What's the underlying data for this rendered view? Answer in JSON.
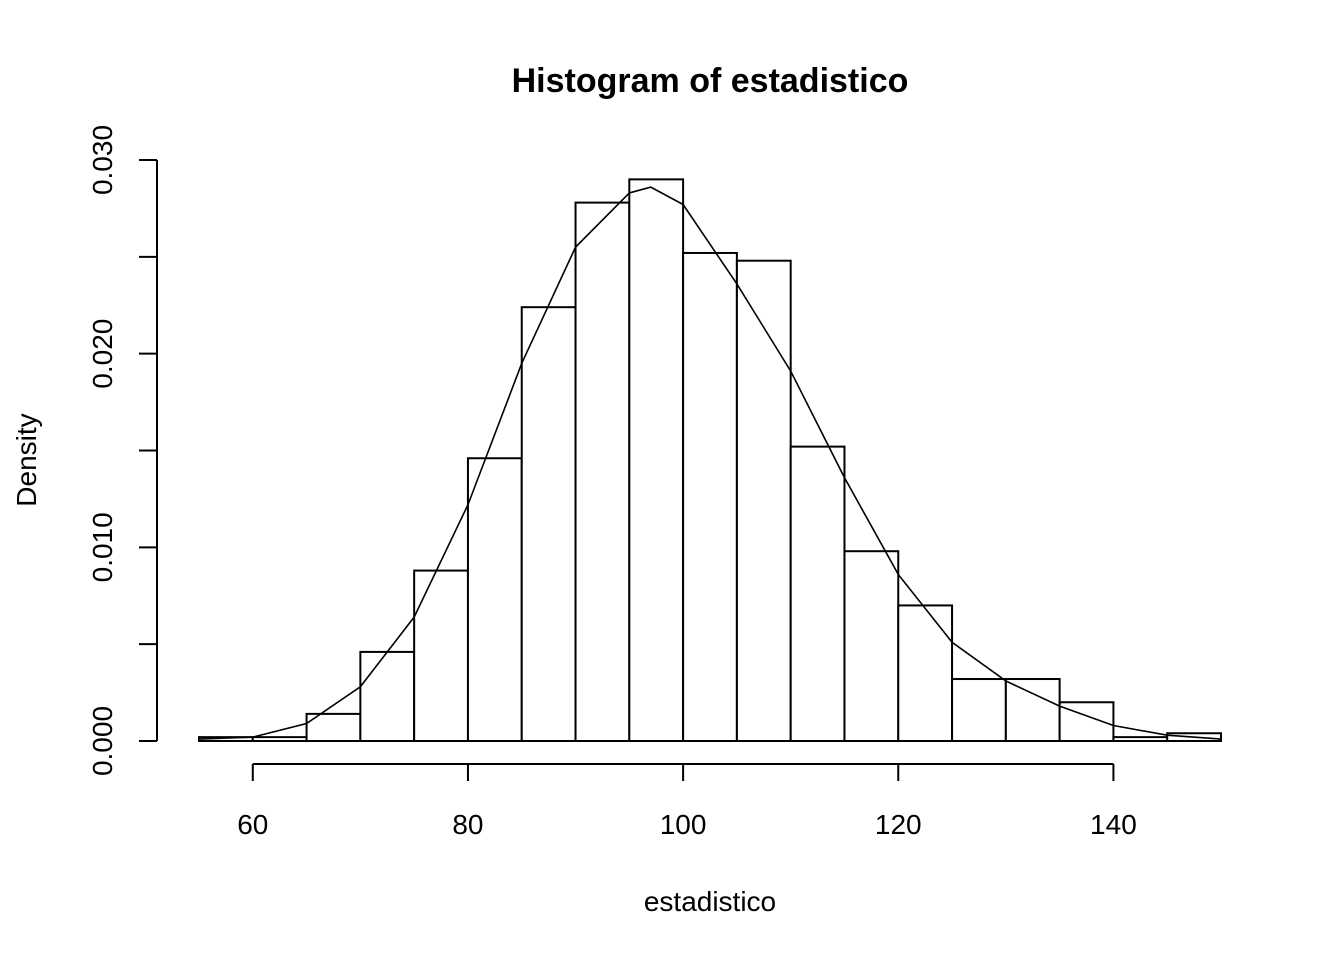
{
  "chart_data": {
    "type": "bar",
    "title": "Histogram of estadistico",
    "xlabel": "estadistico",
    "ylabel": "Density",
    "xlim": [
      55,
      150
    ],
    "ylim": [
      0,
      0.03
    ],
    "x_ticks": [
      60,
      80,
      100,
      120,
      140
    ],
    "x_tick_labels": [
      "60",
      "80",
      "100",
      "120",
      "140"
    ],
    "y_ticks": [
      0,
      0.005,
      0.01,
      0.015,
      0.02,
      0.025,
      0.03
    ],
    "y_tick_labels": [
      "0.000",
      "",
      "0.010",
      "",
      "0.020",
      "",
      "0.030"
    ],
    "bins": [
      [
        55,
        60
      ],
      [
        60,
        65
      ],
      [
        65,
        70
      ],
      [
        70,
        75
      ],
      [
        75,
        80
      ],
      [
        80,
        85
      ],
      [
        85,
        90
      ],
      [
        90,
        95
      ],
      [
        95,
        100
      ],
      [
        100,
        105
      ],
      [
        105,
        110
      ],
      [
        110,
        115
      ],
      [
        115,
        120
      ],
      [
        120,
        125
      ],
      [
        125,
        130
      ],
      [
        130,
        135
      ],
      [
        135,
        140
      ],
      [
        140,
        145
      ],
      [
        145,
        150
      ]
    ],
    "values": [
      0.0002,
      0.0002,
      0.0014,
      0.0046,
      0.0088,
      0.0146,
      0.0224,
      0.0278,
      0.029,
      0.0252,
      0.0248,
      0.0152,
      0.0098,
      0.007,
      0.0032,
      0.0032,
      0.002,
      0.0002,
      0.0004
    ],
    "density_curve": {
      "x": [
        55,
        60,
        65,
        70,
        75,
        80,
        85,
        90,
        95,
        97,
        100,
        105,
        110,
        115,
        120,
        125,
        130,
        135,
        140,
        145,
        150
      ],
      "y": [
        0.0001,
        0.0002,
        0.0009,
        0.0028,
        0.0064,
        0.0122,
        0.0195,
        0.0255,
        0.0283,
        0.0286,
        0.0277,
        0.0236,
        0.0191,
        0.0136,
        0.0086,
        0.0051,
        0.0031,
        0.0018,
        0.0008,
        0.0003,
        0.0001
      ]
    },
    "grid": false,
    "legend": "none"
  }
}
